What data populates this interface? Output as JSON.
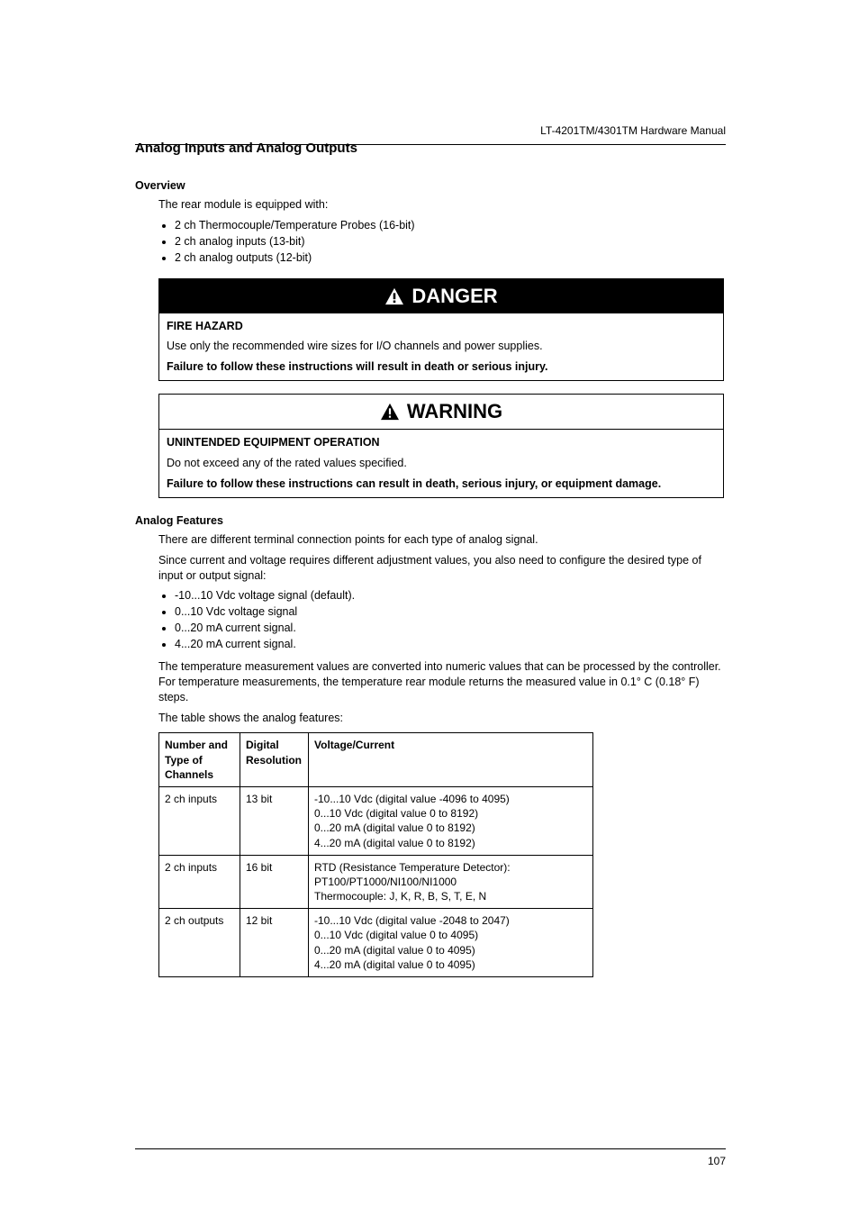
{
  "doc": {
    "running_header": "LT-4201TM/4301TM Hardware Manual",
    "page_number": "107"
  },
  "section": {
    "title": "Analog Inputs and Analog Outputs"
  },
  "overview": {
    "heading": "Overview",
    "intro": "The rear module is equipped with:",
    "items": [
      "2 ch Thermocouple/Temperature Probes (16-bit)",
      "2 ch analog inputs (13-bit)",
      "2 ch analog outputs (12-bit)"
    ]
  },
  "danger": {
    "label": "DANGER",
    "subtitle": "FIRE HAZARD",
    "body": "Use only the recommended wire sizes for I/O channels and power supplies.",
    "consequence": "Failure to follow these instructions will result in death or serious injury.",
    "header_bg": "#000000",
    "header_fg": "#ffffff"
  },
  "warning": {
    "label": "WARNING",
    "subtitle": "UNINTENDED EQUIPMENT OPERATION",
    "body": "Do not exceed any of the rated values specified.",
    "consequence": "Failure to follow these instructions can result in death, serious injury, or equipment damage.",
    "header_bg": "#ffffff",
    "header_fg": "#000000"
  },
  "features": {
    "heading": "Analog Features",
    "p1": "There are different terminal connection points for each type of analog signal.",
    "p2": "Since current and voltage requires different adjustment values, you also need to configure the desired type of input or output signal:",
    "signal_types": [
      "-10...10 Vdc voltage signal (default).",
      "0...10 Vdc voltage signal",
      "0...20 mA current signal.",
      "4...20 mA current signal."
    ],
    "p3": "The temperature measurement values are converted into numeric values that can be processed by the controller. For temperature measurements, the temperature rear module returns the measured value in 0.1° C (0.18° F) steps.",
    "p4": "The table shows the analog features:",
    "table": {
      "col_widths": [
        "90px",
        "76px",
        "316px"
      ],
      "headers": [
        "Number and Type of Channels",
        "Digital Resolution",
        "Voltage/Current"
      ],
      "rows": [
        {
          "c0": "2 ch inputs",
          "c1": "13 bit",
          "c2_lines": [
            "-10...10 Vdc (digital value -4096 to 4095)",
            "0...10 Vdc (digital value 0 to 8192)",
            "0...20 mA (digital value 0 to 8192)",
            "4...20 mA (digital value 0 to 8192)"
          ]
        },
        {
          "c0": "2 ch inputs",
          "c1": "16 bit",
          "c2_lines": [
            "RTD (Resistance Temperature Detector):",
            "PT100/PT1000/NI100/NI1000",
            "Thermocouple: J, K, R, B, S, T, E, N"
          ]
        },
        {
          "c0": "2 ch outputs",
          "c1": "12 bit",
          "c2_lines": [
            "-10...10 Vdc (digital value -2048 to 2047)",
            "0...10 Vdc (digital value 0 to 4095)",
            "0...20 mA (digital value 0 to 4095)",
            "4...20 mA (digital value 0 to 4095)"
          ]
        }
      ]
    }
  }
}
